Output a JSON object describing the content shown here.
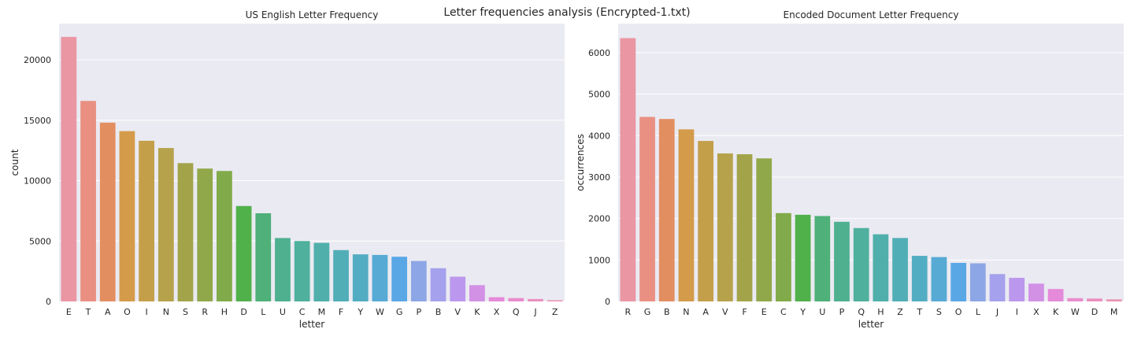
{
  "suptitle": "Letter frequencies analysis (Encrypted-1.txt)",
  "chart_data": [
    {
      "type": "bar",
      "title": "US English Letter Frequency",
      "xlabel": "letter",
      "ylabel": "count",
      "ylim": [
        0,
        23000
      ],
      "yticks": [
        0,
        5000,
        10000,
        15000,
        20000
      ],
      "grid": true,
      "categories": [
        "E",
        "T",
        "A",
        "O",
        "I",
        "N",
        "S",
        "R",
        "H",
        "D",
        "L",
        "U",
        "C",
        "M",
        "F",
        "Y",
        "W",
        "G",
        "P",
        "B",
        "V",
        "K",
        "X",
        "Q",
        "J",
        "Z"
      ],
      "values": [
        21900,
        16600,
        14800,
        14100,
        13300,
        12700,
        11450,
        11000,
        10800,
        7900,
        7300,
        5250,
        5000,
        4850,
        4250,
        3900,
        3850,
        3700,
        3350,
        2750,
        2050,
        1350,
        350,
        280,
        200,
        100
      ],
      "colors": [
        "#ea96a3",
        "#e99083",
        "#e38e61",
        "#d49b4b",
        "#c49f4a",
        "#b5a24b",
        "#a3a44a",
        "#91a84a",
        "#81ab4a",
        "#50b14b",
        "#4fb079",
        "#4eb08f",
        "#4fb09d",
        "#50afaa",
        "#51aeb6",
        "#53adc2",
        "#56aad4",
        "#5aa7e6",
        "#8da6e5",
        "#a5a1ec",
        "#bb98ed",
        "#d291e5",
        "#e48ad9",
        "#e88dcc",
        "#ea8fbf",
        "#eb92b1"
      ]
    },
    {
      "type": "bar",
      "title": "Encoded Document Letter Frequency",
      "xlabel": "letter",
      "ylabel": "occurrences",
      "ylim": [
        0,
        6700
      ],
      "yticks": [
        0,
        1000,
        2000,
        3000,
        4000,
        5000,
        6000
      ],
      "grid": true,
      "categories": [
        "R",
        "G",
        "B",
        "N",
        "A",
        "V",
        "F",
        "E",
        "C",
        "Y",
        "U",
        "P",
        "Q",
        "H",
        "Z",
        "T",
        "S",
        "O",
        "L",
        "J",
        "I",
        "X",
        "K",
        "W",
        "D",
        "M"
      ],
      "values": [
        6350,
        4450,
        4400,
        4150,
        3870,
        3570,
        3550,
        3450,
        2130,
        2090,
        2060,
        1920,
        1770,
        1620,
        1530,
        1100,
        1070,
        930,
        920,
        660,
        570,
        430,
        300,
        80,
        70,
        50
      ],
      "colors": [
        "#ea96a3",
        "#e99083",
        "#e38e61",
        "#d49b4b",
        "#c49f4a",
        "#b5a24b",
        "#a3a44a",
        "#91a84a",
        "#81ab4a",
        "#50b14b",
        "#4fb079",
        "#4eb08f",
        "#4fb09d",
        "#50afaa",
        "#51aeb6",
        "#53adc2",
        "#56aad4",
        "#5aa7e6",
        "#8da6e5",
        "#a5a1ec",
        "#bb98ed",
        "#d291e5",
        "#e48ad9",
        "#e88dcc",
        "#ea8fbf",
        "#eb92b1"
      ]
    }
  ]
}
